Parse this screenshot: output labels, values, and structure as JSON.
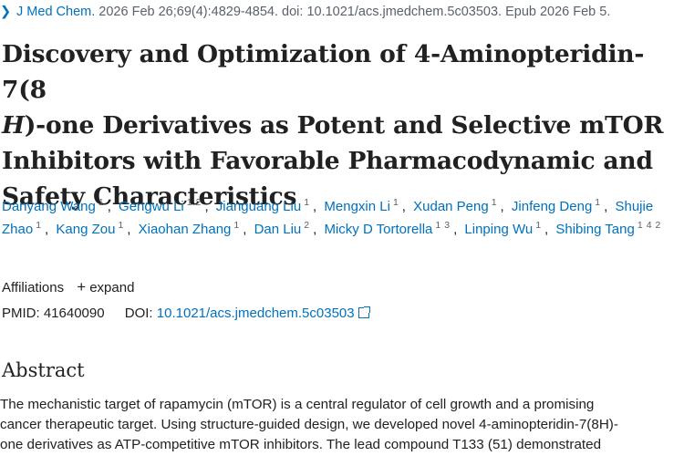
{
  "citation": {
    "journal": "J Med Chem.",
    "details": "2026 Feb 26;69(4):4829-4854. doi: 10.1021/acs.jmedchem.5c03503. Epub 2026 Feb 5."
  },
  "title": {
    "line1": "Discovery and Optimization of 4-Aminopteridin-7(8",
    "line2_italic": "H",
    "line2_rest": ")-one Derivatives as Potent and Selective mTOR",
    "line3": "Inhibitors with Favorable Pharmacodynamic and",
    "line4": "Safety Characteristics"
  },
  "authors": [
    {
      "name": "Danyang Wang",
      "affils": [
        "1"
      ]
    },
    {
      "name": "Gengwu Li",
      "affils": [
        "1",
        "2"
      ]
    },
    {
      "name": "Jianguang Liu",
      "affils": [
        "1"
      ]
    },
    {
      "name": "Mengxin Li",
      "affils": [
        "1"
      ]
    },
    {
      "name": "Xudan Peng",
      "affils": [
        "1"
      ]
    },
    {
      "name": "Jinfeng Deng",
      "affils": [
        "1"
      ]
    },
    {
      "name": "Shujie Zhao",
      "affils": [
        "1"
      ]
    },
    {
      "name": "Kang Zou",
      "affils": [
        "1"
      ]
    },
    {
      "name": "Xiaohan Zhang",
      "affils": [
        "1"
      ]
    },
    {
      "name": "Dan Liu",
      "affils": [
        "2"
      ]
    },
    {
      "name": "Micky D Tortorella",
      "affils": [
        "1",
        "3"
      ]
    },
    {
      "name": "Linping Wu",
      "affils": [
        "1"
      ]
    },
    {
      "name": "Shibing Tang",
      "affils": [
        "1",
        "4",
        "2"
      ]
    }
  ],
  "affiliations": {
    "label": "Affiliations",
    "expand_label": "expand"
  },
  "ids": {
    "pmid_label": "PMID:",
    "pmid": "41640090",
    "doi_label": "DOI:",
    "doi": "10.1021/acs.jmedchem.5c03503"
  },
  "abstract": {
    "heading": "Abstract",
    "line1": "The mechanistic target of rapamycin (mTOR) is a central regulator of cell growth and a promising",
    "line2": "cancer therapeutic target. Using structure-guided design, we developed novel 4-aminopteridin-7(8H)-",
    "line3": "one derivatives as ATP-competitive mTOR inhibitors. The lead compound T133 (51) demonstrated"
  }
}
